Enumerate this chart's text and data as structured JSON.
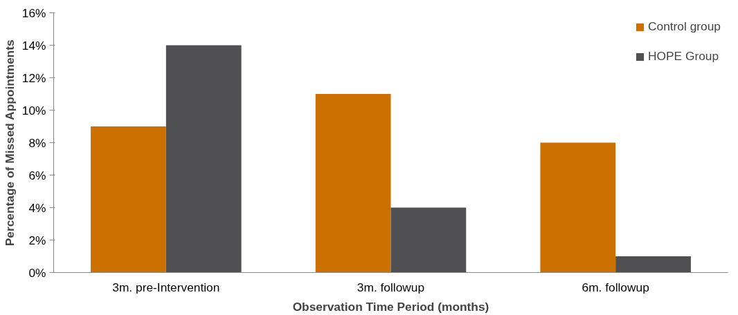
{
  "chart_data": {
    "type": "bar",
    "xlabel": "Observation Time Period (months)",
    "ylabel": "Percentage of Missed Appointments",
    "categories": [
      "3m. pre-Intervention",
      "3m. followup",
      "6m. followup"
    ],
    "series": [
      {
        "name": "Control group",
        "color": "#cc7000",
        "values": [
          9,
          11,
          8
        ]
      },
      {
        "name": "HOPE Group",
        "color": "#505052",
        "values": [
          14,
          4,
          1
        ]
      }
    ],
    "ylim": [
      0,
      16
    ],
    "yticks": [
      {
        "value": 0,
        "label": "0%"
      },
      {
        "value": 2,
        "label": "2%"
      },
      {
        "value": 4,
        "label": "4%"
      },
      {
        "value": 6,
        "label": "6%"
      },
      {
        "value": 8,
        "label": "8%"
      },
      {
        "value": 10,
        "label": "10%"
      },
      {
        "value": 12,
        "label": "12%"
      },
      {
        "value": 14,
        "label": "14%"
      },
      {
        "value": 16,
        "label": "16%"
      }
    ],
    "grid": false,
    "legend": "top right"
  }
}
